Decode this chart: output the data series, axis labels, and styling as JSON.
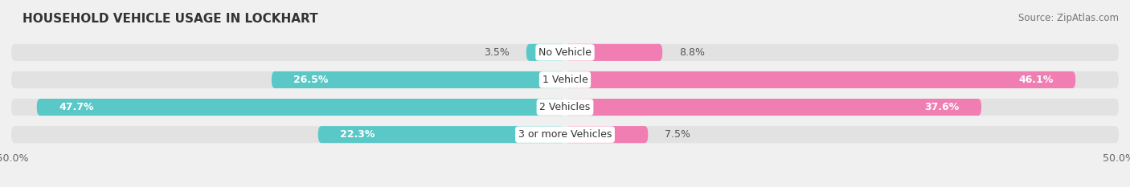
{
  "title": "HOUSEHOLD VEHICLE USAGE IN LOCKHART",
  "source": "Source: ZipAtlas.com",
  "categories": [
    "No Vehicle",
    "1 Vehicle",
    "2 Vehicles",
    "3 or more Vehicles"
  ],
  "owner_values": [
    3.5,
    26.5,
    47.7,
    22.3
  ],
  "renter_values": [
    8.8,
    46.1,
    37.6,
    7.5
  ],
  "owner_color": "#5BC8C8",
  "renter_color": "#F07EB2",
  "xlim": [
    -50,
    50
  ],
  "bar_height": 0.62,
  "background_color": "#f0f0f0",
  "bar_bg_color": "#e2e2e2",
  "row_bg_color": "#e8e8e8",
  "title_fontsize": 11,
  "source_fontsize": 8.5,
  "label_fontsize": 9,
  "category_fontsize": 9,
  "tick_fontsize": 9
}
